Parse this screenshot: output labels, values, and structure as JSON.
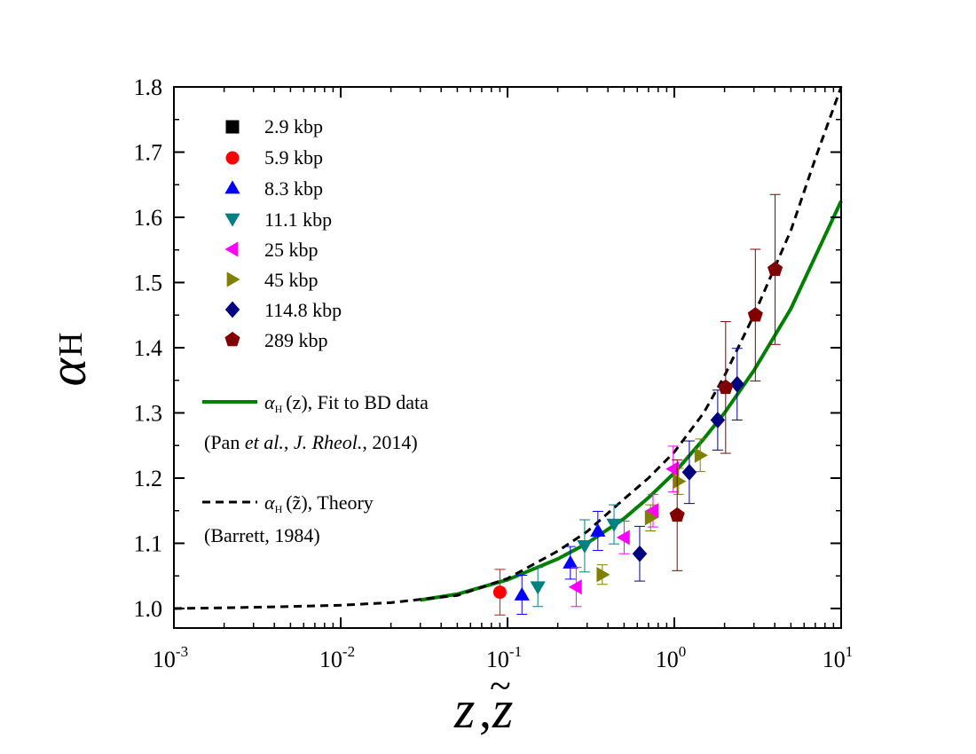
{
  "chart_data": {
    "type": "scatter",
    "xscale": "log",
    "xlim": [
      0.001,
      10
    ],
    "ylim": [
      0.97,
      1.8
    ],
    "grid": false,
    "legend_placement": "top-left",
    "x_ticks": [
      {
        "value": 0.001,
        "base": "10",
        "exp": "-3"
      },
      {
        "value": 0.01,
        "base": "10",
        "exp": "-2"
      },
      {
        "value": 0.1,
        "base": "10",
        "exp": "-1"
      },
      {
        "value": 1,
        "base": "10",
        "exp": "0"
      },
      {
        "value": 10,
        "base": "10",
        "exp": "1"
      }
    ],
    "y_ticks": [
      "1.0",
      "1.1",
      "1.2",
      "1.3",
      "1.4",
      "1.5",
      "1.6",
      "1.7",
      "1.8"
    ],
    "ylabel": {
      "main": "α",
      "sub": "H"
    },
    "xlabel": {
      "z": "z",
      "comma": ",",
      "tilde": "~"
    },
    "series": [
      {
        "name": "2.9 kbp",
        "marker": "square",
        "color": "#000000",
        "points": []
      },
      {
        "name": "5.9 kbp",
        "marker": "circle",
        "color": "#ff0000",
        "points": [
          {
            "x": 0.09,
            "y": 1.025,
            "err": 0.035
          }
        ]
      },
      {
        "name": "8.3 kbp",
        "marker": "triangle-up",
        "color": "#0000ff",
        "points": [
          {
            "x": 0.122,
            "y": 1.021,
            "err": 0.03
          },
          {
            "x": 0.238,
            "y": 1.07,
            "err": 0.025
          },
          {
            "x": 0.348,
            "y": 1.119,
            "err": 0.03
          }
        ]
      },
      {
        "name": "11.1 kbp",
        "marker": "triangle-down",
        "color": "#008080",
        "points": [
          {
            "x": 0.152,
            "y": 1.033,
            "err": 0.03
          },
          {
            "x": 0.29,
            "y": 1.096,
            "err": 0.04
          },
          {
            "x": 0.435,
            "y": 1.129,
            "err": 0.03
          }
        ]
      },
      {
        "name": "25 kbp",
        "marker": "triangle-left",
        "color": "#ff00ff",
        "points": [
          {
            "x": 0.258,
            "y": 1.033,
            "err": 0.03
          },
          {
            "x": 0.5,
            "y": 1.109,
            "err": 0.025
          },
          {
            "x": 0.745,
            "y": 1.15,
            "err": 0.025
          },
          {
            "x": 0.985,
            "y": 1.214,
            "err": 0.035
          }
        ]
      },
      {
        "name": "45 kbp",
        "marker": "triangle-right",
        "color": "#808000",
        "points": [
          {
            "x": 0.37,
            "y": 1.052,
            "err": 0.015
          },
          {
            "x": 0.72,
            "y": 1.139,
            "err": 0.02
          },
          {
            "x": 1.06,
            "y": 1.195,
            "err": 0.02
          },
          {
            "x": 1.43,
            "y": 1.235,
            "err": 0.025
          }
        ]
      },
      {
        "name": "114.8 kbp",
        "marker": "diamond",
        "color": "#000080",
        "points": [
          {
            "x": 0.62,
            "y": 1.084,
            "err": 0.042
          },
          {
            "x": 1.23,
            "y": 1.209,
            "err": 0.048
          },
          {
            "x": 1.82,
            "y": 1.289,
            "err": 0.046
          },
          {
            "x": 2.38,
            "y": 1.344,
            "err": 0.055
          }
        ]
      },
      {
        "name": "289 kbp",
        "marker": "pentagon",
        "color": "#800000",
        "points": [
          {
            "x": 1.04,
            "y": 1.143,
            "err": 0.085
          },
          {
            "x": 2.03,
            "y": 1.339,
            "err": 0.101
          },
          {
            "x": 3.06,
            "y": 1.45,
            "err": 0.101
          },
          {
            "x": 4.02,
            "y": 1.52,
            "err": 0.115
          }
        ]
      }
    ],
    "curves": [
      {
        "name_symbol": "α",
        "name_sub": "H",
        "name_arg": "(z)",
        "name_text": ", Fit to BD data",
        "citation": {
          "pre": "(Pan ",
          "italic1": "et al.",
          "mid": ", ",
          "italic2": "J. Rheol.",
          "post": ", 2014)"
        },
        "style": "solid",
        "color": "#008000",
        "points": [
          [
            0.03,
            1.013
          ],
          [
            0.05,
            1.022
          ],
          [
            0.1,
            1.044
          ],
          [
            0.2,
            1.076
          ],
          [
            0.3,
            1.1
          ],
          [
            0.5,
            1.138
          ],
          [
            0.7,
            1.17
          ],
          [
            1,
            1.208
          ],
          [
            1.5,
            1.26
          ],
          [
            2,
            1.3
          ],
          [
            3,
            1.365
          ],
          [
            5,
            1.46
          ],
          [
            7,
            1.54
          ],
          [
            10,
            1.625
          ]
        ]
      },
      {
        "name_symbol": "α",
        "name_sub": "H",
        "name_arg": "(z̃)",
        "name_text": ", Theory",
        "citation": {
          "pre": "(Barrett, 1984)",
          "italic1": "",
          "mid": "",
          "italic2": "",
          "post": ""
        },
        "style": "dashed",
        "color": "#000000",
        "points": [
          [
            0.001,
            1.0
          ],
          [
            0.002,
            1.001
          ],
          [
            0.005,
            1.003
          ],
          [
            0.01,
            1.005
          ],
          [
            0.02,
            1.009
          ],
          [
            0.05,
            1.02
          ],
          [
            0.1,
            1.046
          ],
          [
            0.2,
            1.088
          ],
          [
            0.3,
            1.118
          ],
          [
            0.5,
            1.168
          ],
          [
            0.7,
            1.2
          ],
          [
            1,
            1.24
          ],
          [
            1.5,
            1.3
          ],
          [
            2,
            1.357
          ],
          [
            3,
            1.45
          ],
          [
            5,
            1.58
          ],
          [
            7,
            1.69
          ],
          [
            10,
            1.8
          ]
        ]
      }
    ]
  }
}
